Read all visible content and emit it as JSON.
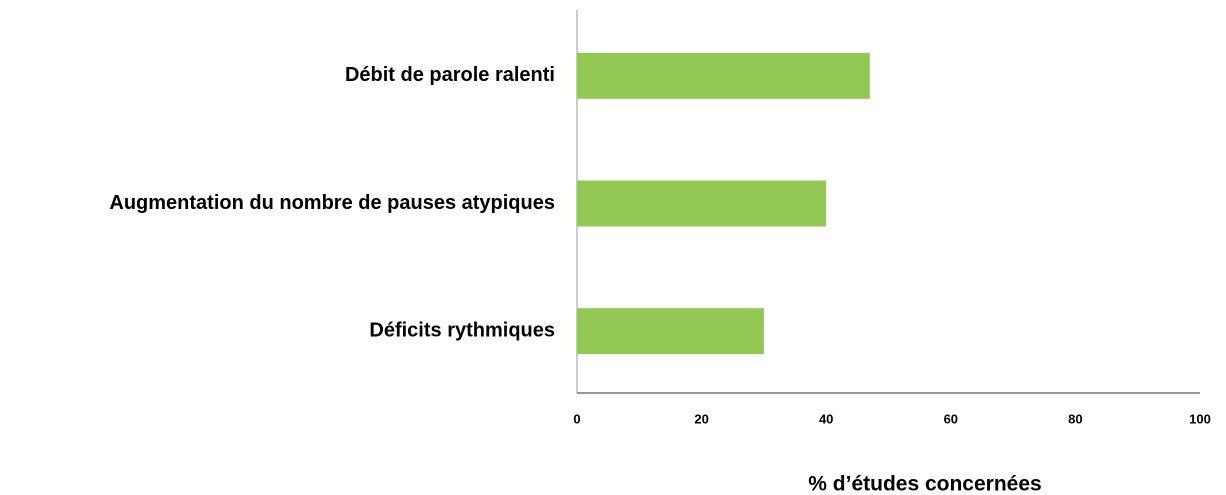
{
  "chart_data": {
    "type": "bar",
    "orientation": "horizontal",
    "categories": [
      "Débit de parole ralenti",
      "Augmentation du nombre de pauses atypiques",
      "Déficits rythmiques"
    ],
    "values": [
      47,
      40,
      30
    ],
    "color": "#92c853",
    "xlim": [
      0,
      100
    ],
    "xticks": [
      0,
      20,
      40,
      60,
      80,
      100
    ],
    "x_label": "% d’études concernées",
    "grid": false
  }
}
